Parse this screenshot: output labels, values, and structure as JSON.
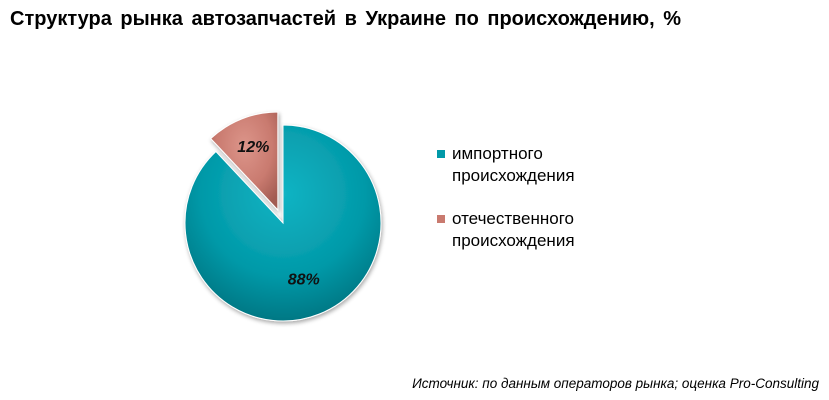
{
  "title": "Структура рынка автозапчастей в Украине по происхождению, %",
  "source": "Источник: по данным операторов рынка; оценка Pro-Consulting",
  "colors": {
    "import": "#0199a8",
    "domestic": "#c97a6f"
  },
  "chart_data": {
    "type": "pie",
    "title": "Структура рынка автозапчастей в Украине по происхождению, %",
    "slices": [
      {
        "label": "импортного происхождения",
        "value": 88,
        "display": "88%",
        "color": "#0199a8",
        "exploded": false
      },
      {
        "label": "отечественного происхождения",
        "value": 12,
        "display": "12%",
        "color": "#c97a6f",
        "exploded": true
      }
    ],
    "legend_position": "right"
  }
}
